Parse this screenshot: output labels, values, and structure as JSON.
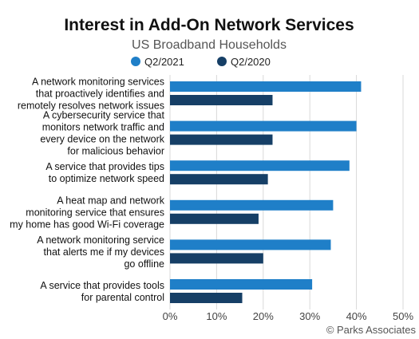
{
  "chart_data": {
    "type": "bar",
    "orientation": "horizontal",
    "title": "Interest in Add-On Network Services",
    "subtitle": "US Broadband Households",
    "categories": [
      [
        "A network monitoring services",
        "that proactively identifies and",
        "remotely resolves network issues"
      ],
      [
        "A cybersecurity service that",
        "monitors network traffic and",
        "every device on the network",
        "for malicious behavior"
      ],
      [
        "A service that provides tips",
        "to optimize network speed"
      ],
      [
        "A heat map and network",
        "monitoring service that ensures",
        "my home has good Wi-Fi coverage"
      ],
      [
        "A network monitoring service",
        "that alerts me if my devices",
        "go offline"
      ],
      [
        "A service that provides tools",
        "for parental control"
      ]
    ],
    "series": [
      {
        "name": "Q2/2021",
        "color": "#1f7fc8",
        "values": [
          41,
          40,
          38.5,
          35,
          34.5,
          30.5
        ]
      },
      {
        "name": "Q2/2020",
        "color": "#163f66",
        "values": [
          22,
          22,
          21,
          19,
          20,
          15.5
        ]
      }
    ],
    "xlim": [
      0,
      50
    ],
    "xticks": [
      "0%",
      "10%",
      "20%",
      "30%",
      "40%",
      "50%"
    ],
    "grid": true,
    "legend_position": "top-center"
  },
  "footer": {
    "copyright": "© Parks Associates"
  }
}
